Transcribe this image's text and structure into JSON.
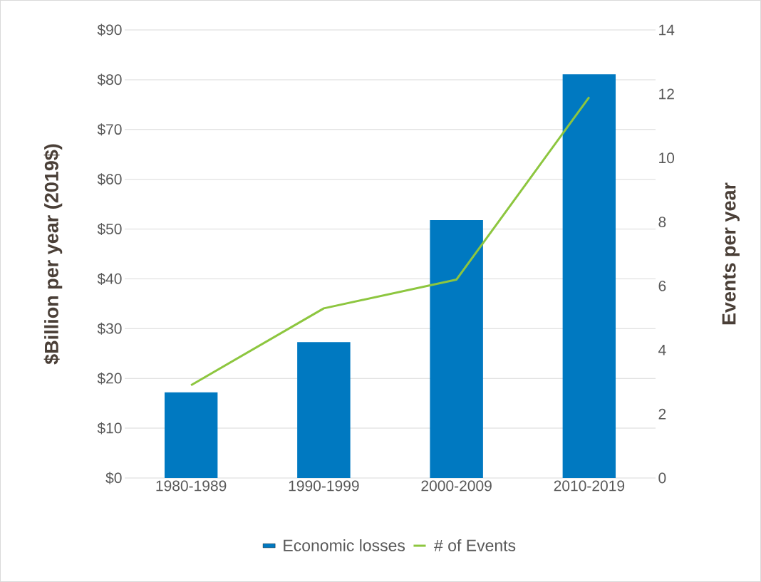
{
  "chart_data": {
    "type": "bar",
    "categories": [
      "1980-1989",
      "1990-1999",
      "2000-2009",
      "2010-2019"
    ],
    "series": [
      {
        "name": "Economic losses",
        "color": "#0079c1",
        "values": [
          17.2,
          27.3,
          51.8,
          81.1
        ]
      },
      {
        "name": "# of Events",
        "type": "line",
        "color": "#8dc63f",
        "axis": "y2",
        "values": [
          2.9,
          5.3,
          6.2,
          11.9
        ]
      }
    ],
    "ylabel": "$Billion per year (2019$)",
    "y2label": "Events per year",
    "ylim": [
      0,
      90
    ],
    "yticks": [
      {
        "value": 0,
        "label": "$0"
      },
      {
        "value": 10,
        "label": "$10"
      },
      {
        "value": 20,
        "label": "$20"
      },
      {
        "value": 30,
        "label": "$30"
      },
      {
        "value": 40,
        "label": "$40"
      },
      {
        "value": 50,
        "label": "$50"
      },
      {
        "value": 60,
        "label": "$60"
      },
      {
        "value": 70,
        "label": "$70"
      },
      {
        "value": 80,
        "label": "$80"
      },
      {
        "value": 90,
        "label": "$90"
      }
    ],
    "y2lim": [
      0,
      14
    ],
    "y2ticks": [
      0,
      2,
      4,
      6,
      8,
      10,
      12,
      14
    ],
    "grid": "y",
    "legend": "bottom",
    "marker": "none"
  }
}
